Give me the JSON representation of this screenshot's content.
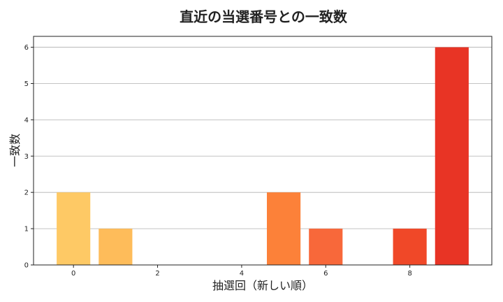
{
  "chart_data": {
    "type": "bar",
    "title": "直近の当選番号との一致数",
    "xlabel": "抽選回（新しい順）",
    "ylabel": "一致数",
    "x": [
      0,
      1,
      2,
      3,
      4,
      5,
      6,
      7,
      8,
      9
    ],
    "values": [
      2,
      1,
      0,
      0,
      0,
      2,
      1,
      0,
      1,
      6
    ],
    "xlim": [
      -0.95,
      9.95
    ],
    "ylim": [
      0,
      6.3
    ],
    "xticks": [
      0,
      2,
      4,
      6,
      8
    ],
    "yticks": [
      0,
      1,
      2,
      3,
      4,
      5,
      6
    ],
    "grid": "horizontal",
    "colors": [
      "#fec965",
      "#febc5a",
      "#fea848",
      "#fd9a44",
      "#fd8c3c",
      "#fc8139",
      "#f8683a",
      "#f05030",
      "#f04828",
      "#e83425"
    ]
  }
}
